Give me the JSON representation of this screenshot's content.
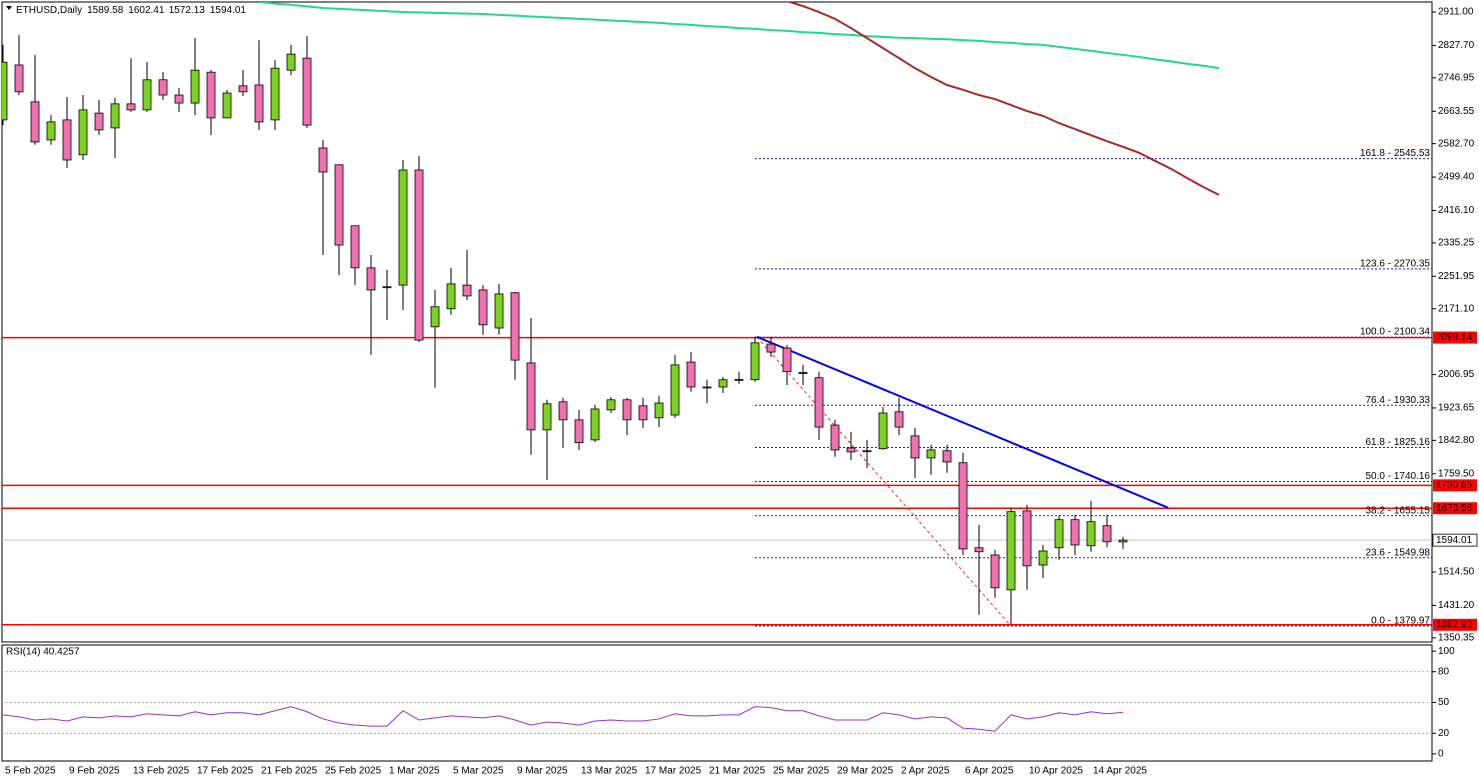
{
  "chart_data": {
    "type": "candlestick",
    "symbol": "ETHUSD,Daily",
    "categories": [
      "5 Feb 2025",
      null,
      null,
      null,
      "9 Feb 2025",
      null,
      null,
      null,
      "13 Feb 2025",
      null,
      null,
      null,
      "17 Feb 2025",
      null,
      null,
      null,
      "21 Feb 2025",
      null,
      null,
      null,
      "25 Feb 2025",
      null,
      null,
      null,
      "1 Mar 2025",
      null,
      null,
      null,
      "5 Mar 2025",
      null,
      null,
      null,
      "9 Mar 2025",
      null,
      null,
      null,
      "13 Mar 2025",
      null,
      null,
      null,
      "17 Mar 2025",
      null,
      null,
      null,
      "21 Mar 2025",
      null,
      null,
      null,
      "25 Mar 2025",
      null,
      null,
      null,
      "29 Mar 2025",
      null,
      null,
      null,
      "2 Apr 2025",
      null,
      null,
      null,
      "6 Apr 2025",
      null,
      null,
      null,
      "10 Apr 2025",
      null,
      null,
      null,
      "14 Apr 2025",
      null,
      null,
      null,
      null,
      null,
      null,
      null,
      null
    ],
    "open": [
      2642,
      2779,
      2687,
      2592,
      2642,
      2555,
      2659,
      2622,
      2682,
      2667,
      2742,
      2704,
      2684,
      2761,
      2647,
      2727,
      2729,
      2642,
      2766,
      2796,
      2572,
      2530,
      2378,
      2273,
      2226,
      2230,
      2517,
      2126,
      2171,
      2230,
      2218,
      2123,
      2211,
      2036,
      1869,
      1939,
      1894,
      1844,
      1919,
      1944,
      1929,
      1899,
      1906,
      2038,
      1976,
      1976,
      1994,
      1994,
      2083,
      2073,
      2011,
      1999,
      1881,
      1824,
      1817,
      1822,
      1914,
      1854,
      1799,
      1817,
      1787,
      1575,
      1557,
      1470,
      1667,
      1532,
      1575,
      1645,
      1580,
      1630,
      1589.58,
      null,
      null,
      null,
      null,
      null,
      null
    ],
    "high": [
      2829,
      2854,
      2804,
      2654,
      2699,
      2704,
      2692,
      2697,
      2796,
      2786,
      2761,
      2722,
      2846,
      2766,
      2717,
      2766,
      2841,
      2791,
      2829,
      2851,
      2592,
      2530,
      2378,
      2305,
      2268,
      2542,
      2552,
      2218,
      2273,
      2318,
      2230,
      2233,
      2213,
      2148,
      1944,
      1949,
      1919,
      1931,
      1951,
      1949,
      1949,
      1954,
      2056,
      2063,
      1994,
      2001,
      2014,
      2101,
      2101,
      2081,
      2031,
      2014,
      1894,
      1864,
      1844,
      1926,
      1949,
      1874,
      1832,
      1832,
      1812,
      1632,
      1570,
      1675,
      1682,
      1582,
      1655,
      1657,
      1692,
      1657,
      1602.41,
      null,
      null,
      null,
      null,
      null,
      null
    ],
    "low": [
      2629,
      2704,
      2580,
      2580,
      2522,
      2542,
      2604,
      2547,
      2662,
      2662,
      2692,
      2662,
      2654,
      2604,
      2647,
      2702,
      2617,
      2617,
      2754,
      2622,
      2305,
      2255,
      2230,
      2056,
      2143,
      2168,
      2088,
      1974,
      2156,
      2193,
      2106,
      2106,
      1994,
      1807,
      1744,
      1824,
      1819,
      1839,
      1911,
      1856,
      1874,
      1876,
      1899,
      1964,
      1936,
      1961,
      1984,
      1989,
      2051,
      1981,
      1981,
      1844,
      1802,
      1794,
      1774,
      1819,
      1856,
      1749,
      1757,
      1762,
      1557,
      1408,
      1450,
      1385,
      1470,
      1500,
      1545,
      1557,
      1565,
      1577,
      1572.13,
      null,
      null,
      null,
      null,
      null,
      null
    ],
    "close": [
      2786,
      2712,
      2587,
      2637,
      2542,
      2667,
      2617,
      2682,
      2667,
      2742,
      2704,
      2684,
      2766,
      2647,
      2709,
      2712,
      2637,
      2771,
      2806,
      2629,
      2512,
      2330,
      2273,
      2218,
      2224,
      2517,
      2093,
      2176,
      2233,
      2203,
      2131,
      2208,
      2043,
      1869,
      1934,
      1894,
      1837,
      1921,
      1944,
      1894,
      1894,
      1936,
      2031,
      1976,
      1974,
      1994,
      1995,
      2086,
      2063,
      2014,
      2012,
      1876,
      1819,
      1814,
      1816,
      1911,
      1876,
      1799,
      1819,
      1789,
      1572,
      1565,
      1475,
      1665,
      1530,
      1567,
      1645,
      1582,
      1640,
      1590,
      1594.01,
      null,
      null,
      null,
      null,
      null,
      null
    ],
    "up_color": "#7ad31f",
    "down_color": "#f370b0",
    "ylim": [
      1340,
      2941
    ],
    "yticks": [
      {
        "value": 2911,
        "label": "2911.00"
      },
      {
        "value": 2827.7,
        "label": "2827.70"
      },
      2746.95,
      2663.55,
      {
        "value": 2582.7,
        "label": "2582.70"
      },
      {
        "value": 2499.4,
        "label": "2499.40"
      },
      {
        "value": 2416.1,
        "label": "2416.10"
      },
      2335.25,
      2251.95,
      {
        "value": 2171.1,
        "label": "2171.10"
      },
      2006.95,
      1923.65,
      {
        "value": 1842.8,
        "label": "1842.80"
      },
      {
        "value": 1759.5,
        "label": "1759.50"
      },
      {
        "value": 1514.5,
        "label": "1514.50"
      },
      {
        "value": 1431.2,
        "label": "1431.20"
      },
      1350.35
    ],
    "moving_averages": [
      {
        "color": "#1fd98c",
        "values": [
          null,
          null,
          null,
          null,
          null,
          null,
          null,
          null,
          null,
          null,
          null,
          null,
          null,
          null,
          null,
          null,
          2936,
          2932,
          2929,
          2925,
          2921,
          2919,
          2917,
          2915,
          2913,
          2911,
          2910,
          2909,
          2908,
          2907,
          2906,
          2904,
          2902,
          2900,
          2898,
          2896,
          2894,
          2892,
          2890,
          2888,
          2886,
          2884,
          2881,
          2879,
          2876,
          2874,
          2871,
          2869,
          2866,
          2864,
          2861,
          2859,
          2856,
          2854,
          2851,
          2849,
          2847,
          2846,
          2844,
          2843,
          2841,
          2839,
          2836,
          2834,
          2831,
          2829,
          2824,
          2819,
          2814,
          2809,
          2804,
          2799,
          2793,
          2788,
          2782,
          2777,
          2771
        ]
      },
      {
        "color": "#a52a2a",
        "values": [
          null,
          null,
          null,
          null,
          null,
          null,
          null,
          null,
          null,
          null,
          null,
          null,
          null,
          null,
          null,
          null,
          null,
          null,
          null,
          null,
          null,
          null,
          null,
          null,
          null,
          null,
          null,
          null,
          null,
          null,
          null,
          null,
          null,
          null,
          null,
          null,
          null,
          null,
          null,
          null,
          null,
          null,
          null,
          null,
          null,
          null,
          null,
          null,
          null,
          2938,
          2926,
          2911,
          2894,
          2871,
          2846,
          2821,
          2796,
          2771,
          2749,
          2729,
          2717,
          2704,
          2694,
          2679,
          2664,
          2652,
          2634,
          2619,
          2604,
          2589,
          2575,
          2560,
          2540,
          2520,
          2497,
          2475,
          2455
        ]
      }
    ],
    "levels": [
      2099.14,
      1730.65,
      1673.56,
      1382.92
    ],
    "level_color": "#ff0000",
    "fibonacci": {
      "color": "#1a1acc",
      "anchor_color": "#e0301e",
      "levels": [
        {
          "value": 2545.53,
          "label": "161.8 - 2545.53"
        },
        {
          "value": 2270.35,
          "label": "123.6 - 2270.35"
        },
        {
          "value": 2100.34,
          "label": "100.0 - 2100.34"
        },
        {
          "value": 1930.33,
          "label": "76.4 - 1930.33"
        },
        {
          "value": 1825.16,
          "label": "61.8 - 1825.16"
        },
        {
          "value": 1740.16,
          "label": "50.0 - 1740.16"
        },
        {
          "value": 1655.15,
          "label": "38.2 - 1655.15"
        },
        {
          "value": 1549.98,
          "label": "23.6 - 1549.98"
        },
        {
          "value": 1379.97,
          "label": "0.0 - 1379.97"
        }
      ]
    },
    "trendline": {
      "color": "#0000ff",
      "start": 2101,
      "end": 1675
    },
    "rsi": {
      "title": "RSI(14) 40.4257",
      "color": "#9b30c8",
      "ylim": [
        -6,
        107
      ],
      "yticks": [
        100,
        80,
        50,
        20,
        0
      ],
      "values": [
        38,
        36,
        33,
        34,
        32,
        36,
        35,
        37,
        36,
        39,
        38,
        37,
        41,
        38,
        40,
        40,
        38,
        42,
        46,
        41,
        34,
        30,
        28,
        27,
        27,
        42,
        33,
        35,
        37,
        36,
        35,
        37,
        33,
        28,
        31,
        30,
        28,
        32,
        33,
        32,
        32,
        34,
        39,
        37,
        37,
        38,
        38,
        46,
        45,
        42,
        42,
        37,
        33,
        33,
        33,
        40,
        38,
        34,
        36,
        35,
        25,
        24,
        22,
        38,
        34,
        36,
        40,
        38,
        41,
        39,
        40.4257,
        null,
        null,
        null,
        null,
        null,
        null
      ]
    }
  }
}
